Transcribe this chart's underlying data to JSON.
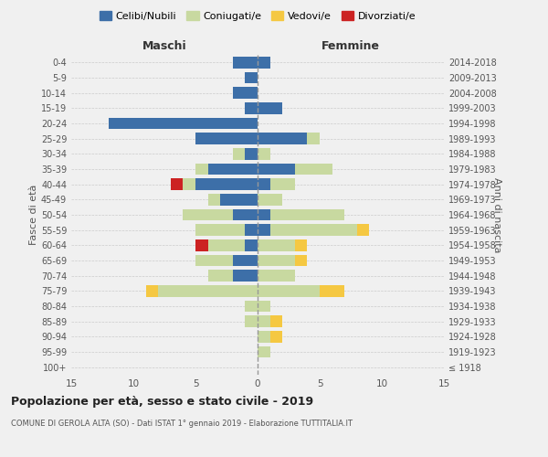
{
  "age_groups": [
    "100+",
    "95-99",
    "90-94",
    "85-89",
    "80-84",
    "75-79",
    "70-74",
    "65-69",
    "60-64",
    "55-59",
    "50-54",
    "45-49",
    "40-44",
    "35-39",
    "30-34",
    "25-29",
    "20-24",
    "15-19",
    "10-14",
    "5-9",
    "0-4"
  ],
  "birth_years": [
    "≤ 1918",
    "1919-1923",
    "1924-1928",
    "1929-1933",
    "1934-1938",
    "1939-1943",
    "1944-1948",
    "1949-1953",
    "1954-1958",
    "1959-1963",
    "1964-1968",
    "1969-1973",
    "1974-1978",
    "1979-1983",
    "1984-1988",
    "1989-1993",
    "1994-1998",
    "1999-2003",
    "2004-2008",
    "2009-2013",
    "2014-2018"
  ],
  "colors": {
    "celibi": "#3d6fa8",
    "coniugati": "#c8d9a0",
    "vedovi": "#f5c842",
    "divorziati": "#cc2222"
  },
  "males": {
    "celibi": [
      0,
      0,
      0,
      0,
      0,
      0,
      2,
      2,
      1,
      1,
      2,
      3,
      5,
      4,
      1,
      5,
      12,
      1,
      2,
      1,
      2
    ],
    "coniugati": [
      0,
      0,
      0,
      1,
      1,
      8,
      2,
      3,
      3,
      4,
      4,
      1,
      1,
      1,
      1,
      0,
      0,
      0,
      0,
      0,
      0
    ],
    "vedovi": [
      0,
      0,
      0,
      0,
      0,
      1,
      0,
      0,
      0,
      0,
      0,
      0,
      0,
      0,
      0,
      0,
      0,
      0,
      0,
      0,
      0
    ],
    "divorziati": [
      0,
      0,
      0,
      0,
      0,
      0,
      0,
      0,
      1,
      0,
      0,
      0,
      1,
      0,
      0,
      0,
      0,
      0,
      0,
      0,
      0
    ]
  },
  "females": {
    "celibi": [
      0,
      0,
      0,
      0,
      0,
      0,
      0,
      0,
      0,
      1,
      1,
      0,
      1,
      3,
      0,
      4,
      0,
      2,
      0,
      0,
      1
    ],
    "coniugati": [
      0,
      1,
      1,
      1,
      1,
      5,
      3,
      3,
      3,
      7,
      6,
      2,
      2,
      3,
      1,
      1,
      0,
      0,
      0,
      0,
      0
    ],
    "vedovi": [
      0,
      0,
      1,
      1,
      0,
      2,
      0,
      1,
      1,
      1,
      0,
      0,
      0,
      0,
      0,
      0,
      0,
      0,
      0,
      0,
      0
    ],
    "divorziati": [
      0,
      0,
      0,
      0,
      0,
      0,
      0,
      0,
      0,
      0,
      0,
      0,
      0,
      0,
      0,
      0,
      0,
      0,
      0,
      0,
      0
    ]
  },
  "xlim": 15,
  "title": "Popolazione per età, sesso e stato civile - 2019",
  "subtitle": "COMUNE DI GEROLA ALTA (SO) - Dati ISTAT 1° gennaio 2019 - Elaborazione TUTTITALIA.IT",
  "xlabel_left": "Maschi",
  "xlabel_right": "Femmine",
  "ylabel_left": "Fasce di età",
  "ylabel_right": "Anni di nascita",
  "legend_labels": [
    "Celibi/Nubili",
    "Coniugati/e",
    "Vedovi/e",
    "Divorziati/e"
  ],
  "bg_color": "#f0f0f0"
}
